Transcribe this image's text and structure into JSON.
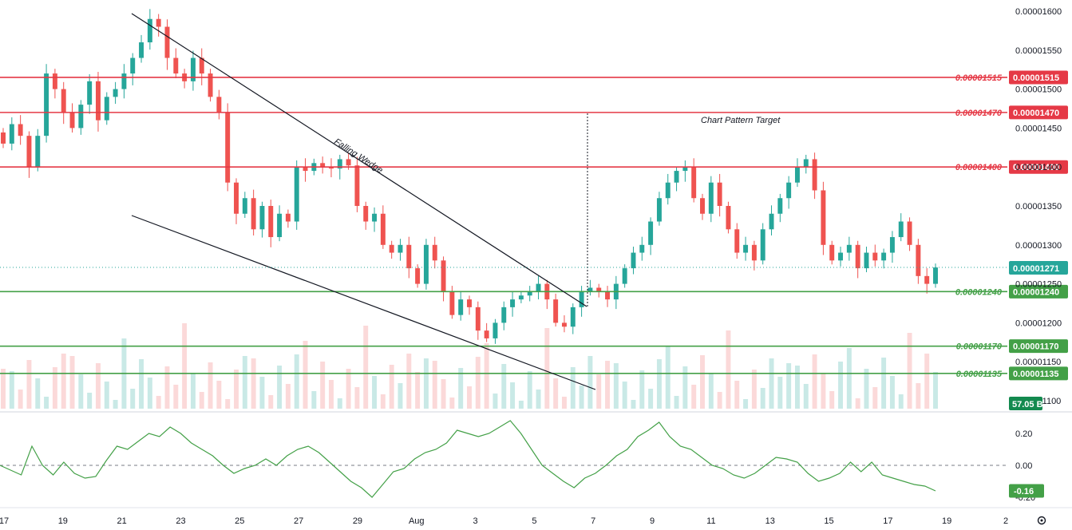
{
  "chart_data": [
    {
      "type": "candlestick",
      "title": "",
      "price_axis_ticks": [
        "0.00001600",
        "0.00001550",
        "0.00001500",
        "0.00001450",
        "0.00001400",
        "0.00001350",
        "0.00001300",
        "0.00001250",
        "0.00001200",
        "0.00001150",
        "0.00001100"
      ],
      "x_axis_ticks": [
        "17",
        "19",
        "21",
        "23",
        "25",
        "27",
        "29",
        "Aug",
        "3",
        "5",
        "7",
        "9",
        "11",
        "13",
        "15",
        "17",
        "19",
        "2"
      ],
      "ylim": [
        1.08e-05,
        1.605e-05
      ],
      "current_price": "0.00001271",
      "volume_badge": "57.05 B",
      "annotations": {
        "wedge_label": "Falling Wedge",
        "target_label": "Chart Pattern Target"
      },
      "resistance_levels": [
        {
          "label": "0.00001515",
          "value": 1.515e-05,
          "color": "#e53946"
        },
        {
          "label": "0.00001470",
          "value": 1.47e-05,
          "color": "#e53946"
        },
        {
          "label": "0.00001400",
          "value": 1.4e-05,
          "color": "#e53946"
        }
      ],
      "support_levels": [
        {
          "label": "0.00001240",
          "value": 1.24e-05,
          "color": "#43a047"
        },
        {
          "label": "0.00001170",
          "value": 1.17e-05,
          "color": "#43a047"
        },
        {
          "label": "0.00001135",
          "value": 1.135e-05,
          "color": "#43a047"
        }
      ],
      "close_series": [
        1.43e-05,
        1.455e-05,
        1.44e-05,
        1.4e-05,
        1.44e-05,
        1.52e-05,
        1.5e-05,
        1.47e-05,
        1.45e-05,
        1.48e-05,
        1.51e-05,
        1.46e-05,
        1.49e-05,
        1.5e-05,
        1.52e-05,
        1.54e-05,
        1.56e-05,
        1.59e-05,
        1.58e-05,
        1.54e-05,
        1.52e-05,
        1.51e-05,
        1.54e-05,
        1.52e-05,
        1.49e-05,
        1.47e-05,
        1.38e-05,
        1.34e-05,
        1.36e-05,
        1.32e-05,
        1.35e-05,
        1.31e-05,
        1.34e-05,
        1.33e-05,
        1.4e-05,
        1.395e-05,
        1.405e-05,
        1.4e-05,
        1.398e-05,
        1.41e-05,
        1.402e-05,
        1.35e-05,
        1.33e-05,
        1.34e-05,
        1.3e-05,
        1.29e-05,
        1.3e-05,
        1.27e-05,
        1.25e-05,
        1.3e-05,
        1.28e-05,
        1.24e-05,
        1.21e-05,
        1.23e-05,
        1.22e-05,
        1.19e-05,
        1.18e-05,
        1.2e-05,
        1.22e-05,
        1.23e-05,
        1.235e-05,
        1.24e-05,
        1.25e-05,
        1.23e-05,
        1.2e-05,
        1.195e-05,
        1.22e-05,
        1.24e-05,
        1.245e-05,
        1.24e-05,
        1.23e-05,
        1.25e-05,
        1.27e-05,
        1.29e-05,
        1.3e-05,
        1.33e-05,
        1.36e-05,
        1.38e-05,
        1.395e-05,
        1.4e-05,
        1.36e-05,
        1.34e-05,
        1.38e-05,
        1.35e-05,
        1.32e-05,
        1.29e-05,
        1.3e-05,
        1.28e-05,
        1.32e-05,
        1.34e-05,
        1.36e-05,
        1.38e-05,
        1.4e-05,
        1.41e-05,
        1.37e-05,
        1.3e-05,
        1.28e-05,
        1.29e-05,
        1.3e-05,
        1.27e-05,
        1.29e-05,
        1.28e-05,
        1.29e-05,
        1.31e-05,
        1.33e-05,
        1.3e-05,
        1.26e-05,
        1.25e-05,
        1.271e-05
      ],
      "volume_ticks_hidden": true,
      "oscillator": {
        "ticks": [
          "0.20",
          "0.00",
          "-0.20"
        ],
        "current": "-0.16",
        "values": [
          0.0,
          -0.03,
          -0.06,
          0.12,
          0.0,
          -0.06,
          0.02,
          -0.05,
          -0.08,
          -0.07,
          0.03,
          0.12,
          0.1,
          0.15,
          0.2,
          0.18,
          0.24,
          0.2,
          0.14,
          0.1,
          0.06,
          0.0,
          -0.05,
          -0.02,
          0.0,
          0.04,
          0.0,
          0.06,
          0.1,
          0.12,
          0.08,
          0.02,
          -0.04,
          -0.1,
          -0.14,
          -0.2,
          -0.12,
          -0.04,
          -0.02,
          0.04,
          0.08,
          0.1,
          0.14,
          0.22,
          0.2,
          0.18,
          0.2,
          0.24,
          0.28,
          0.2,
          0.1,
          0.0,
          -0.05,
          -0.1,
          -0.14,
          -0.08,
          -0.05,
          0.0,
          0.06,
          0.1,
          0.18,
          0.22,
          0.27,
          0.18,
          0.12,
          0.1,
          0.05,
          0.0,
          -0.02,
          -0.06,
          -0.08,
          -0.05,
          0.0,
          0.05,
          0.04,
          0.02,
          -0.05,
          -0.1,
          -0.08,
          -0.05,
          0.02,
          -0.04,
          0.02,
          -0.06,
          -0.08,
          -0.1,
          -0.12,
          -0.13,
          -0.16
        ],
        "color": "#43a047"
      }
    }
  ]
}
